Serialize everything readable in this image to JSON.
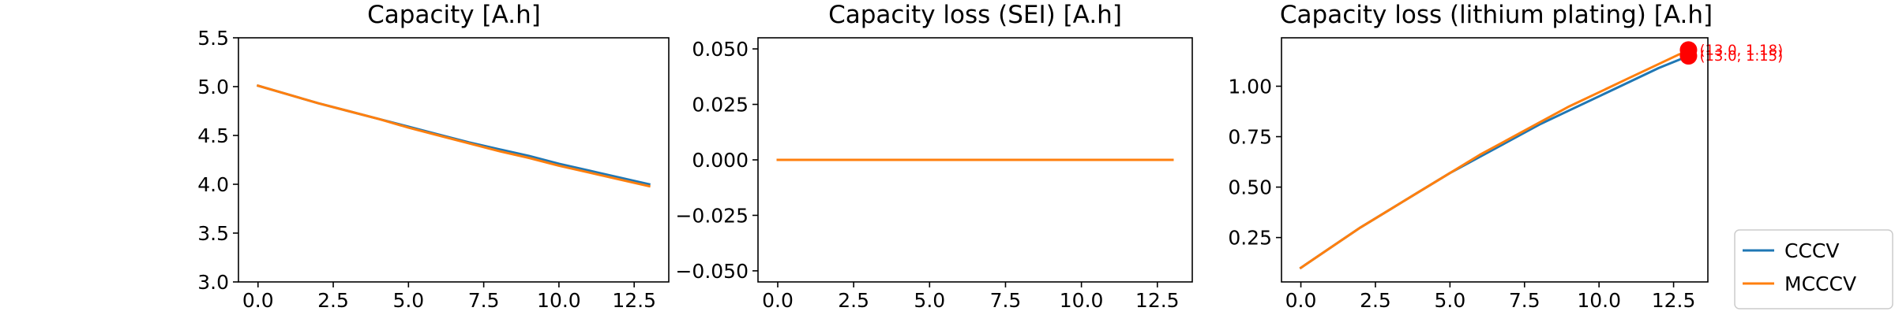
{
  "chart_data": [
    {
      "type": "line",
      "title": "Capacity [A.h]",
      "xlabel": "",
      "ylabel": "",
      "xlim": [
        -0.65,
        13.65
      ],
      "ylim": [
        3.0,
        5.5
      ],
      "xticks": [
        "0.0",
        "2.5",
        "5.0",
        "7.5",
        "10.0",
        "12.5"
      ],
      "yticks": [
        "3.0",
        "3.5",
        "4.0",
        "4.5",
        "5.0",
        "5.5"
      ],
      "grid": false,
      "series": [
        {
          "name": "CCCV",
          "color": "#1f77b4",
          "x": [
            0,
            1,
            2,
            3,
            4,
            5,
            6,
            7,
            8,
            9,
            10,
            11,
            12,
            13
          ],
          "y": [
            5.01,
            4.92,
            4.83,
            4.75,
            4.67,
            4.59,
            4.51,
            4.43,
            4.36,
            4.29,
            4.21,
            4.14,
            4.07,
            4.0
          ]
        },
        {
          "name": "MCCCV",
          "color": "#ff7f0e",
          "x": [
            0,
            1,
            2,
            3,
            4,
            5,
            6,
            7,
            8,
            9,
            10,
            11,
            12,
            13
          ],
          "y": [
            5.01,
            4.92,
            4.83,
            4.75,
            4.67,
            4.58,
            4.5,
            4.42,
            4.34,
            4.27,
            4.19,
            4.12,
            4.05,
            3.98
          ]
        }
      ]
    },
    {
      "type": "line",
      "title": "Capacity loss (SEI) [A.h]",
      "xlabel": "",
      "ylabel": "",
      "xlim": [
        -0.65,
        13.65
      ],
      "ylim": [
        -0.055,
        0.055
      ],
      "xticks": [
        "0.0",
        "2.5",
        "5.0",
        "7.5",
        "10.0",
        "12.5"
      ],
      "yticks": [
        "−0.050",
        "−0.025",
        "0.000",
        "0.025",
        "0.050"
      ],
      "grid": false,
      "series": [
        {
          "name": "CCCV",
          "color": "#1f77b4",
          "x": [
            0,
            13
          ],
          "y": [
            0,
            0
          ]
        },
        {
          "name": "MCCCV",
          "color": "#ff7f0e",
          "x": [
            0,
            13
          ],
          "y": [
            0,
            0
          ]
        }
      ]
    },
    {
      "type": "line",
      "title": "Capacity loss (lithium plating) [A.h]",
      "xlabel": "",
      "ylabel": "",
      "xlim": [
        -0.65,
        13.65
      ],
      "ylim": [
        0.03,
        1.24
      ],
      "xticks": [
        "0.0",
        "2.5",
        "5.0",
        "7.5",
        "10.0",
        "12.5"
      ],
      "yticks": [
        "0.25",
        "0.50",
        "0.75",
        "1.00"
      ],
      "grid": false,
      "series": [
        {
          "name": "CCCV",
          "color": "#1f77b4",
          "x": [
            0,
            1,
            2,
            3,
            4,
            5,
            6,
            7,
            8,
            9,
            10,
            11,
            12,
            13
          ],
          "y": [
            0.1,
            0.2,
            0.3,
            0.39,
            0.48,
            0.57,
            0.65,
            0.73,
            0.81,
            0.88,
            0.95,
            1.02,
            1.09,
            1.15
          ]
        },
        {
          "name": "MCCCV",
          "color": "#ff7f0e",
          "x": [
            0,
            1,
            2,
            3,
            4,
            5,
            6,
            7,
            8,
            9,
            10,
            11,
            12,
            13
          ],
          "y": [
            0.1,
            0.2,
            0.3,
            0.39,
            0.48,
            0.57,
            0.66,
            0.74,
            0.82,
            0.9,
            0.97,
            1.04,
            1.11,
            1.18
          ]
        }
      ],
      "markers": [
        {
          "x": 13.0,
          "y": 1.15,
          "color": "#ff0000",
          "label": "(13.0, 1.15)"
        },
        {
          "x": 13.0,
          "y": 1.18,
          "color": "#ff0000",
          "label": "(13.0, 1.18)"
        }
      ]
    }
  ],
  "legend": {
    "placement": "bottom-right",
    "entries": [
      {
        "label": "CCCV",
        "color": "#1f77b4"
      },
      {
        "label": "MCCCV",
        "color": "#ff7f0e"
      }
    ]
  }
}
